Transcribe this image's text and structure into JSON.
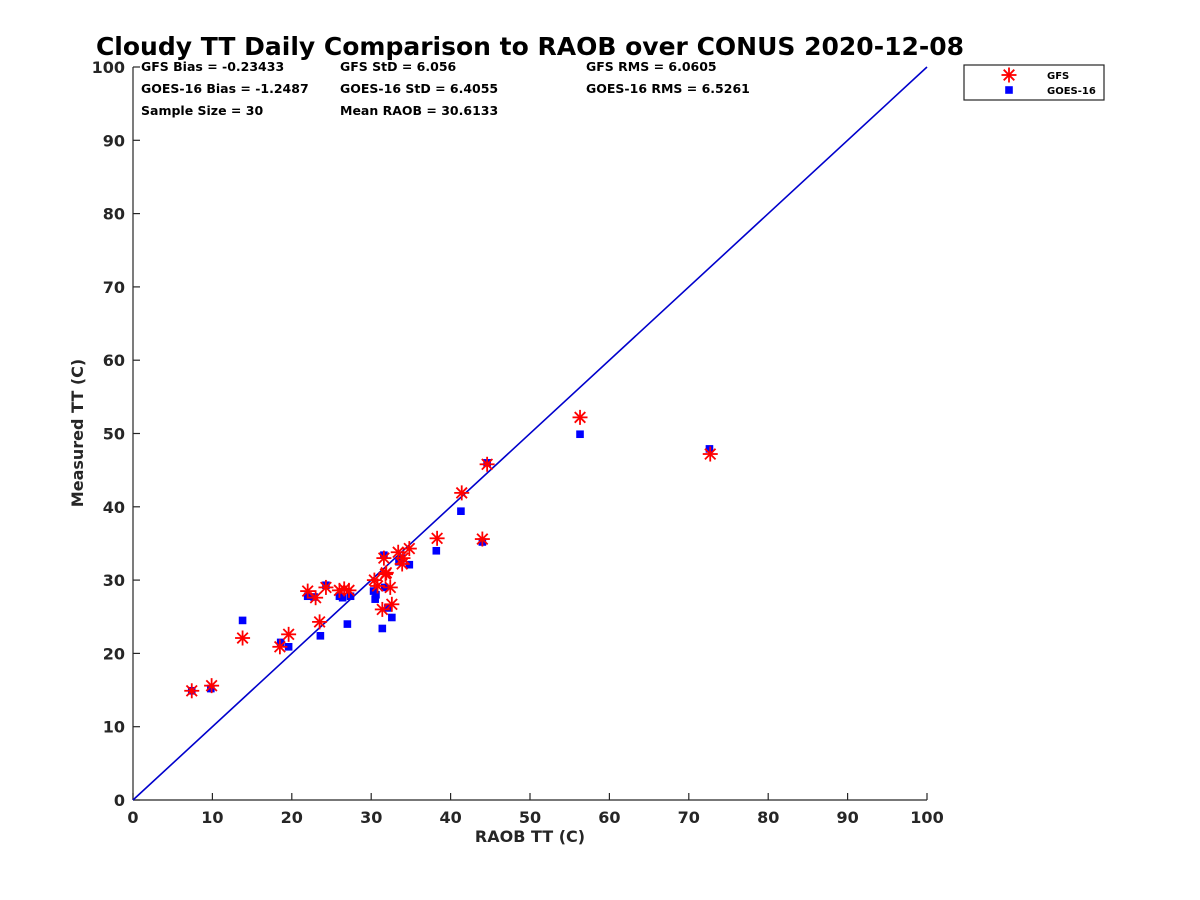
{
  "chart_data": {
    "type": "scatter",
    "title": "Cloudy TT Daily Comparison to RAOB over CONUS 2020-12-08",
    "xlabel": "RAOB TT (C)",
    "ylabel": "Measured TT (C)",
    "xlim": [
      0,
      100
    ],
    "ylim": [
      0,
      100
    ],
    "xticks": [
      "0",
      "10",
      "20",
      "30",
      "40",
      "50",
      "60",
      "70",
      "80",
      "90",
      "100"
    ],
    "yticks": [
      "0",
      "10",
      "20",
      "30",
      "40",
      "50",
      "60",
      "70",
      "80",
      "90",
      "100"
    ],
    "grid": false,
    "legend_position": "outside-top-right",
    "reference_line": {
      "type": "identity",
      "color": "#0000cc"
    },
    "stats": [
      "GFS Bias = -0.23433",
      "GFS StD = 6.056",
      "GFS RMS = 6.0605",
      "GOES-16 Bias = -1.2487",
      "GOES-16 StD = 6.4055",
      "GOES-16 RMS = 6.5261",
      "Sample Size = 30",
      "Mean RAOB = 30.6133"
    ],
    "series": [
      {
        "name": "GFS",
        "marker": "asterisk",
        "color": "#ff0000",
        "x": [
          7.4,
          9.9,
          13.8,
          18.5,
          19.6,
          22.0,
          23.0,
          23.5,
          24.3,
          26.0,
          26.6,
          27.2,
          30.4,
          30.8,
          31.4,
          31.6,
          31.8,
          32.4,
          32.6,
          33.4,
          33.9,
          34.0,
          34.8,
          38.3,
          41.4,
          44.0,
          44.6,
          56.3,
          72.7,
          31.9
        ],
        "y": [
          14.9,
          15.6,
          22.1,
          20.9,
          22.6,
          28.5,
          27.6,
          24.3,
          29.0,
          28.6,
          28.8,
          28.6,
          30.0,
          29.2,
          26.0,
          33.0,
          30.8,
          29.0,
          26.7,
          33.8,
          32.2,
          33.0,
          34.3,
          35.7,
          41.9,
          35.6,
          45.8,
          52.2,
          47.2,
          31.0
        ]
      },
      {
        "name": "GOES-16",
        "marker": "square",
        "color": "#0000ff",
        "x": [
          7.4,
          9.8,
          13.8,
          18.6,
          19.6,
          22.0,
          22.8,
          23.6,
          24.3,
          26.0,
          26.4,
          27.0,
          27.4,
          30.3,
          30.5,
          30.6,
          31.4,
          31.6,
          31.7,
          32.1,
          32.6,
          33.5,
          33.8,
          34.8,
          38.2,
          41.3,
          44.0,
          44.6,
          56.3,
          72.6
        ],
        "y": [
          14.9,
          15.2,
          24.5,
          21.5,
          20.9,
          27.8,
          27.7,
          22.4,
          29.3,
          27.8,
          27.6,
          24.0,
          27.8,
          28.5,
          27.4,
          28.0,
          23.4,
          33.4,
          29.0,
          26.2,
          24.9,
          32.5,
          33.0,
          32.1,
          34.0,
          39.4,
          35.2,
          46.0,
          49.9,
          47.9
        ]
      }
    ]
  }
}
